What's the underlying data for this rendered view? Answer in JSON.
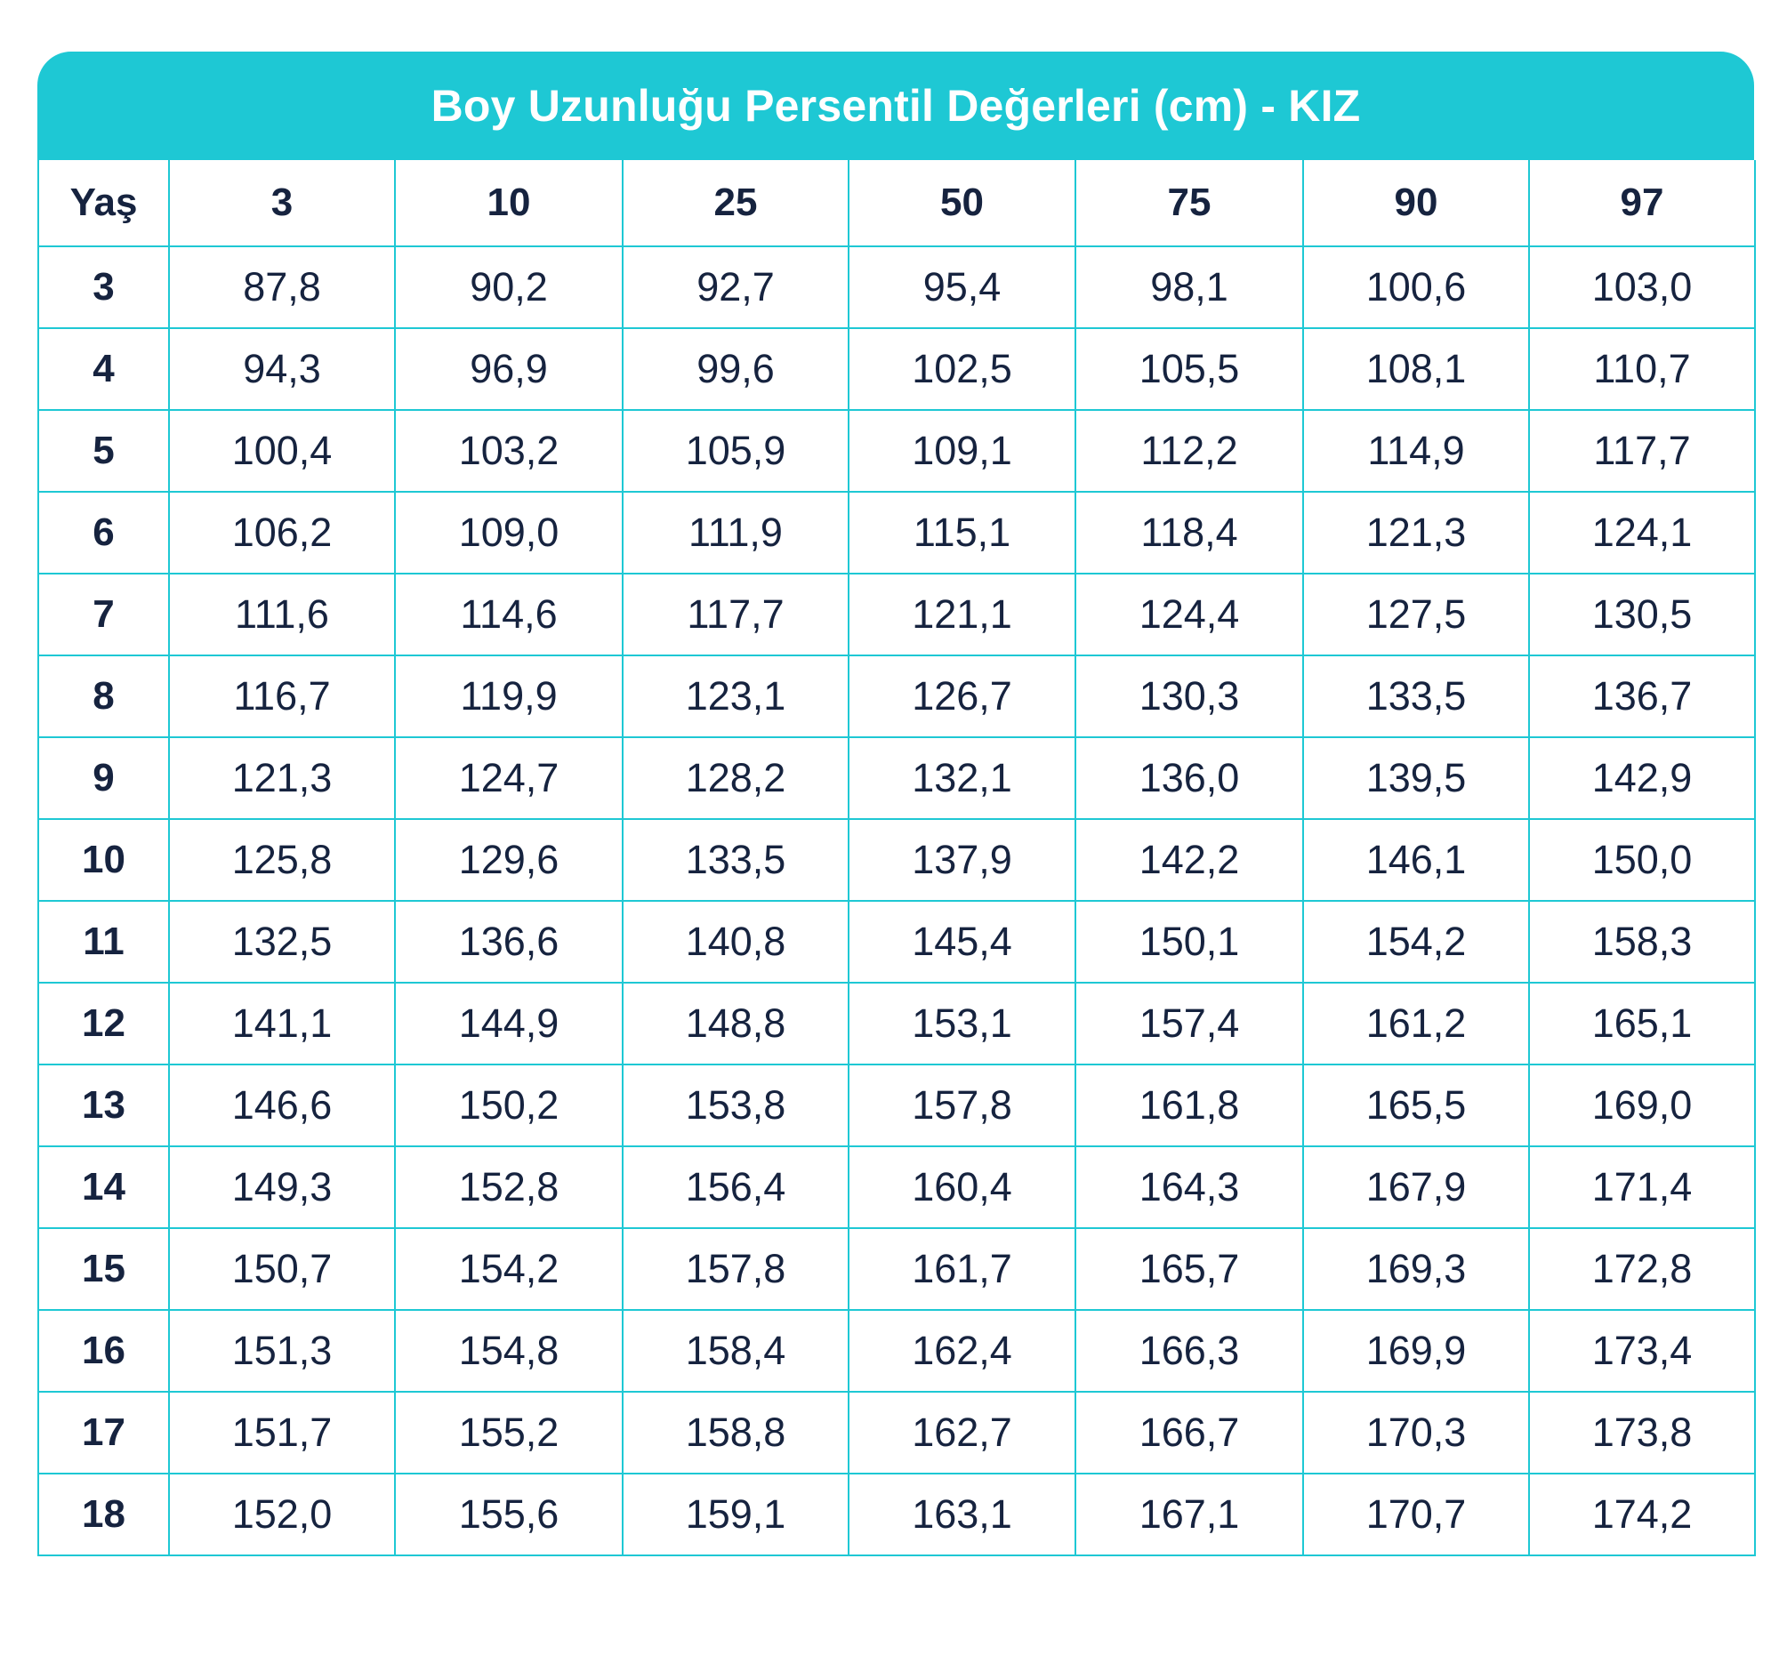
{
  "chart_data": {
    "type": "table",
    "title": "Boy Uzunluğu Persentil Değerleri (cm) - KIZ",
    "columns": [
      "Yaş",
      "3",
      "10",
      "25",
      "50",
      "75",
      "90",
      "97"
    ],
    "rows": [
      [
        "3",
        "87,8",
        "90,2",
        "92,7",
        "95,4",
        "98,1",
        "100,6",
        "103,0"
      ],
      [
        "4",
        "94,3",
        "96,9",
        "99,6",
        "102,5",
        "105,5",
        "108,1",
        "110,7"
      ],
      [
        "5",
        "100,4",
        "103,2",
        "105,9",
        "109,1",
        "112,2",
        "114,9",
        "117,7"
      ],
      [
        "6",
        "106,2",
        "109,0",
        "111,9",
        "115,1",
        "118,4",
        "121,3",
        "124,1"
      ],
      [
        "7",
        "111,6",
        "114,6",
        "117,7",
        "121,1",
        "124,4",
        "127,5",
        "130,5"
      ],
      [
        "8",
        "116,7",
        "119,9",
        "123,1",
        "126,7",
        "130,3",
        "133,5",
        "136,7"
      ],
      [
        "9",
        "121,3",
        "124,7",
        "128,2",
        "132,1",
        "136,0",
        "139,5",
        "142,9"
      ],
      [
        "10",
        "125,8",
        "129,6",
        "133,5",
        "137,9",
        "142,2",
        "146,1",
        "150,0"
      ],
      [
        "11",
        "132,5",
        "136,6",
        "140,8",
        "145,4",
        "150,1",
        "154,2",
        "158,3"
      ],
      [
        "12",
        "141,1",
        "144,9",
        "148,8",
        "153,1",
        "157,4",
        "161,2",
        "165,1"
      ],
      [
        "13",
        "146,6",
        "150,2",
        "153,8",
        "157,8",
        "161,8",
        "165,5",
        "169,0"
      ],
      [
        "14",
        "149,3",
        "152,8",
        "156,4",
        "160,4",
        "164,3",
        "167,9",
        "171,4"
      ],
      [
        "15",
        "150,7",
        "154,2",
        "157,8",
        "161,7",
        "165,7",
        "169,3",
        "172,8"
      ],
      [
        "16",
        "151,3",
        "154,8",
        "158,4",
        "162,4",
        "166,3",
        "169,9",
        "173,4"
      ],
      [
        "17",
        "151,7",
        "155,2",
        "158,8",
        "162,7",
        "166,7",
        "170,3",
        "173,8"
      ],
      [
        "18",
        "152,0",
        "155,6",
        "159,1",
        "163,1",
        "167,1",
        "170,7",
        "174,2"
      ]
    ]
  },
  "colors": {
    "accent": "#1ec8d4",
    "text": "#16233f",
    "title_text": "#ffffff",
    "background": "#ffffff"
  }
}
